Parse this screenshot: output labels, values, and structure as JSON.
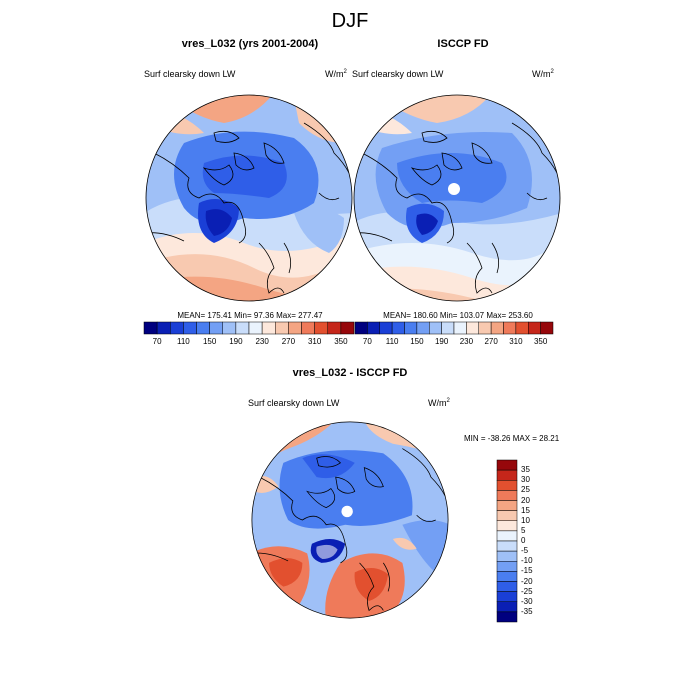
{
  "figure_title": "DJF",
  "colors": {
    "scale": [
      "#00007f",
      "#0a1fb4",
      "#1a3fd6",
      "#2f5ee8",
      "#4a7ef0",
      "#739ff4",
      "#9fc0f7",
      "#c9ddfa",
      "#eaf3fd",
      "#fde8dc",
      "#f8c9b0",
      "#f4a583",
      "#ef7a5a",
      "#e2502f",
      "#c5261a",
      "#96070b"
    ],
    "diff_scale": [
      "#00007f",
      "#0a1fb4",
      "#1a3fd6",
      "#2f5ee8",
      "#4a7ef0",
      "#739ff4",
      "#9fc0f7",
      "#c9ddfa",
      "#eaf3fd",
      "#fde8dc",
      "#f8c9b0",
      "#f4a583",
      "#ef7a5a",
      "#e2502f",
      "#c5261a",
      "#96070b"
    ],
    "coast": "#000000"
  },
  "panels": [
    {
      "title": "vres_L032 (yrs 2001-2004)",
      "variable": "Surf clearsky down LW",
      "units": "W/m",
      "units_sup": "2",
      "stats": "MEAN= 175.41  Min=  97.36  Max= 277.47",
      "colorbar_ticks": [
        "70",
        "110",
        "150",
        "190",
        "230",
        "270",
        "310",
        "350"
      ]
    },
    {
      "title": "ISCCP FD",
      "variable": "Surf clearsky down LW",
      "units": "W/m",
      "units_sup": "2",
      "stats": "MEAN= 180.60  Min= 103.07  Max= 253.60",
      "colorbar_ticks": [
        "70",
        "110",
        "150",
        "190",
        "230",
        "270",
        "310",
        "350"
      ]
    },
    {
      "title": "vres_L032 - ISCCP FD",
      "variable": "Surf clearsky down LW",
      "units": "W/m",
      "units_sup": "2",
      "stats": "MIN = -38.26 MAX =  28.21",
      "colorbar_ticks": [
        "35",
        "30",
        "25",
        "20",
        "15",
        "10",
        "5",
        "0",
        "-5",
        "-10",
        "-15",
        "-20",
        "-25",
        "-30",
        "-35"
      ]
    }
  ]
}
